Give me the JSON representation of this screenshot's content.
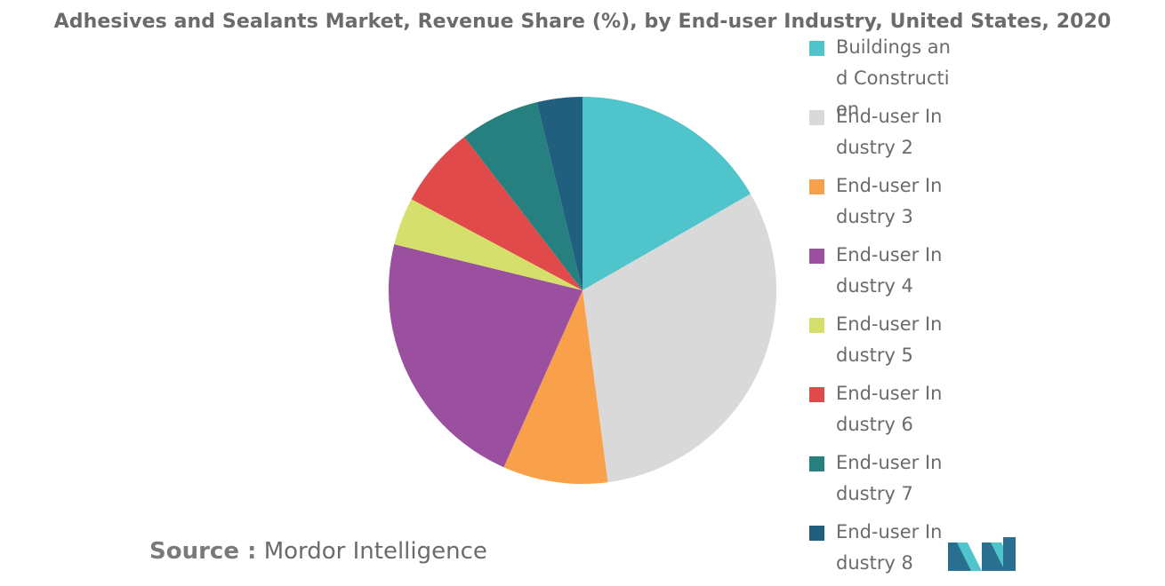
{
  "title": "Adhesives and Sealants Market, Revenue Share (%), by End-user Industry, United States, 2020",
  "source": {
    "prefix": "Source :",
    "name": "Mordor Intelligence"
  },
  "colors": {
    "text": "#6b6b6b",
    "logo_dark": "#2a6f8f",
    "logo_light": "#4fc4cb"
  },
  "chart_data": {
    "type": "pie",
    "title": "Adhesives and Sealants Market, Revenue Share (%), by End-user Industry, United States, 2020",
    "legend_position": "right",
    "slices": [
      {
        "label": "Buildings and Construction",
        "value": 16.8,
        "color": "#4fc4cb"
      },
      {
        "label": "End-user Industry 2",
        "value": 31.4,
        "color": "#d9d9d9"
      },
      {
        "label": "End-user Industry 3",
        "value": 8.8,
        "color": "#f9a04b"
      },
      {
        "label": "End-user Industry 4",
        "value": 22.3,
        "color": "#9b4f9f"
      },
      {
        "label": "End-user Industry 5",
        "value": 4.0,
        "color": "#d4e06b"
      },
      {
        "label": "End-user Industry 6",
        "value": 6.8,
        "color": "#e04a4a"
      },
      {
        "label": "End-user Industry 7",
        "value": 6.7,
        "color": "#268080"
      },
      {
        "label": "End-user Industry 8",
        "value": 3.8,
        "color": "#215f7f"
      }
    ]
  }
}
